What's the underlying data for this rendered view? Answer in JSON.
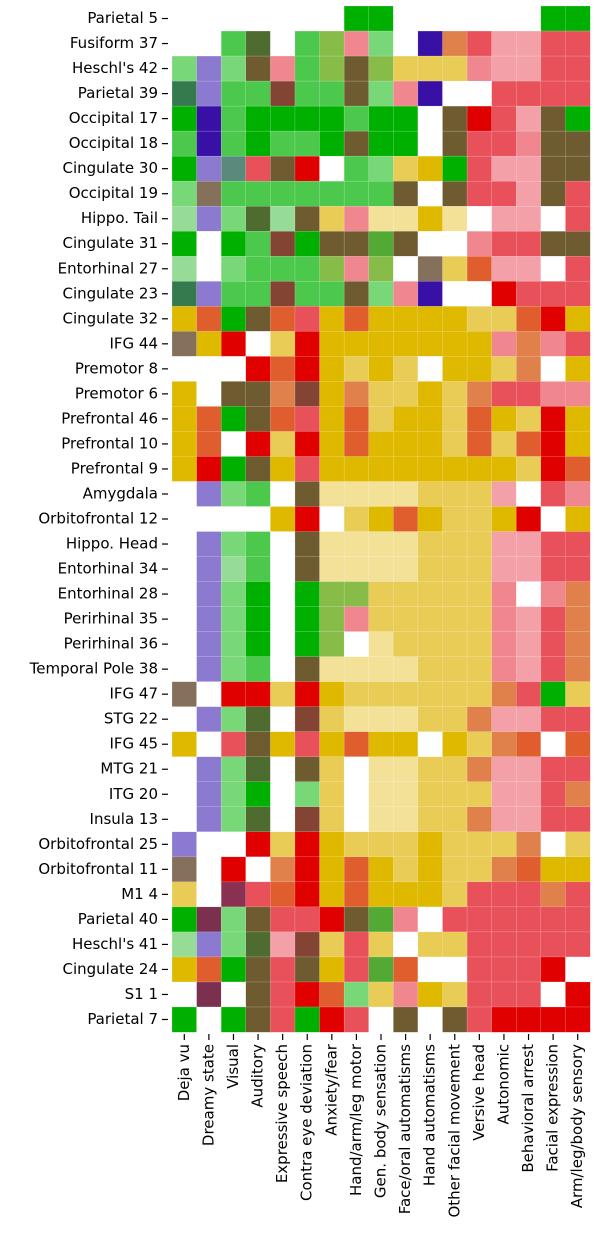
{
  "chart_data": {
    "type": "heatmap",
    "row_labels": [
      "Parietal 5",
      "Fusiform 37",
      "Heschl's 42",
      "Parietal 39",
      "Occipital 17",
      "Occipital 18",
      "Cingulate 30",
      "Occipital 19",
      "Hippo. Tail",
      "Cingulate 31",
      "Entorhinal 27",
      "Cingulate 23",
      "Cingulate 32",
      "IFG 44",
      "Premotor 8",
      "Premotor 6",
      "Prefrontal 46",
      "Prefrontal 10",
      "Prefrontal 9",
      "Amygdala",
      "Orbitofrontal 12",
      "Hippo. Head",
      "Entorhinal 34",
      "Entorhinal 28",
      "Perirhinal 35",
      "Perirhinal 36",
      "Temporal Pole 38",
      "IFG 47",
      "STG 22",
      "IFG 45",
      "MTG 21",
      "ITG 20",
      "Insula 13",
      "Orbitofrontal 25",
      "Orbitofrontal 11",
      "M1 4",
      "Parietal 40",
      "Heschl's 41",
      "Cingulate 24",
      "S1 1",
      "Parietal 7"
    ],
    "col_labels": [
      "Deja vu",
      "Dreamy state",
      "Visual",
      "Auditory",
      "Expressive speech",
      "Contra eye deviation",
      "Anxiety/fear",
      "Hand/arm/leg motor",
      "Gen. body sensation",
      "Face/oral automatisms",
      "Hand automatisms",
      "Other facial movement",
      "Versive head",
      "Autonomic",
      "Behavioral arrest",
      "Facial expression",
      "Arm/leg/body sensory"
    ],
    "palette": {
      "G": "#00b000",
      "g": "#4cc94c",
      "l": "#78d878",
      "p": "#96dc96",
      "D": "#4e6b30",
      "O": "#6e5c30",
      "B": "#844434",
      "M": "#85705c",
      "T": "#357a4e",
      "S": "#5a8a7c",
      "P": "#8c7ad0",
      "N": "#3810a6",
      "V": "#7c3050",
      "W": "#ffffff",
      "Y": "#dfb800",
      "y": "#e8cc55",
      "e": "#f2e196",
      "R": "#e00000",
      "r": "#e8505a",
      "k": "#f0868e",
      "q": "#f4a0a8",
      "o": "#e05e2e",
      "a": "#e0804a",
      "h": "#88bc48",
      "m": "#52aa34",
      "x": "#8a3050"
    },
    "rows": [
      "WWWWWWWGGWWWWWWGG",
      "WWgDWghklWNarqqrr",
      "lPlOkghOhyyykqqrr",
      "TPggBggOlkNWWrrrr",
      "GNgGGGGgGGWORrqOG",
      "gNgGggGOGGWOrrkOO",
      "GPSrORWglyYGrqqOO",
      "lMgggggggOWOrrqOr",
      "pPlDpOykeeYeWqqWr",
      "GWGgBGOOmOWWkrrOO",
      "pWlggghkhWMyoqqWr",
      "TPggBggOlkNWWRrrr",
      "YoGOorYoYYYYyyoRY",
      "MYRWyRYYYYYYYkakr",
      "WWWRoRYyYyWYYyaWY",
      "YWOOaBYayyYyarrkk",
      "YoGOorYoyYYyoYyRY",
      "YoWRyRYoYYYyoyoRY",
      "YRGOYrYYYYYYYYyRo",
      "WPlgWOeeeeyyyqWrk",
      "WWWWYRWyYoYyyYRWY",
      "WPlgWOeeeeyyyqqrr",
      "WPpgWOeeeeyyyqqrr",
      "WPlGWGhhyyyyykWka",
      "WPlGWGhkyyyyykqra",
      "WPlGWGhWeyyyykqra",
      "WPlgWOeeeeyyykqra",
      "MWRRyRYyyyyyyarGy",
      "WPlDWByeeeyyaqqrr",
      "YWrOYrYoYYWYyaoWo",
      "WPlDWOyWeeyyaqqrr",
      "WPlGWlyWeeyyyqqra",
      "WPlDWByWeeyyaqqrr",
      "PWWRyRYyyyYyyyaWy",
      "MWRWaRYoYyYyyaoYY",
      "yWxroRYoYYYyrrrar",
      "GVlOrrROmkWrrrrrr",
      "pPlDqByryWyyrrrrr",
      "YoGOrOYrmoWWrrrRW",
      "WVWOrRolykYyrrrWR",
      "GWGOrGRrWOWOrRRRR"
    ]
  }
}
